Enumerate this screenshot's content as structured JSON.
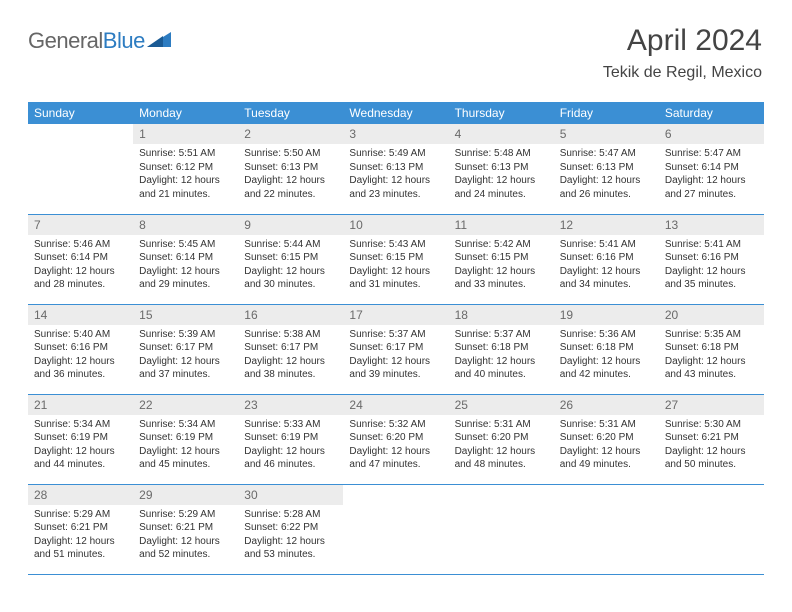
{
  "logo": {
    "part1": "General",
    "part2": "Blue"
  },
  "header": {
    "title": "April 2024",
    "location": "Tekik de Regil, Mexico"
  },
  "colors": {
    "header_bg": "#3b8fd4",
    "header_fg": "#ffffff",
    "daynum_bg": "#ececec",
    "daynum_fg": "#6a6a6a",
    "border": "#3b8fd4",
    "text": "#333333",
    "logo_gray": "#666666",
    "logo_blue": "#2d7cc1"
  },
  "weekdays": [
    "Sunday",
    "Monday",
    "Tuesday",
    "Wednesday",
    "Thursday",
    "Friday",
    "Saturday"
  ],
  "leading_blanks": 1,
  "days": [
    {
      "n": 1,
      "sr": "5:51 AM",
      "ss": "6:12 PM",
      "dl": "12 hours and 21 minutes."
    },
    {
      "n": 2,
      "sr": "5:50 AM",
      "ss": "6:13 PM",
      "dl": "12 hours and 22 minutes."
    },
    {
      "n": 3,
      "sr": "5:49 AM",
      "ss": "6:13 PM",
      "dl": "12 hours and 23 minutes."
    },
    {
      "n": 4,
      "sr": "5:48 AM",
      "ss": "6:13 PM",
      "dl": "12 hours and 24 minutes."
    },
    {
      "n": 5,
      "sr": "5:47 AM",
      "ss": "6:13 PM",
      "dl": "12 hours and 26 minutes."
    },
    {
      "n": 6,
      "sr": "5:47 AM",
      "ss": "6:14 PM",
      "dl": "12 hours and 27 minutes."
    },
    {
      "n": 7,
      "sr": "5:46 AM",
      "ss": "6:14 PM",
      "dl": "12 hours and 28 minutes."
    },
    {
      "n": 8,
      "sr": "5:45 AM",
      "ss": "6:14 PM",
      "dl": "12 hours and 29 minutes."
    },
    {
      "n": 9,
      "sr": "5:44 AM",
      "ss": "6:15 PM",
      "dl": "12 hours and 30 minutes."
    },
    {
      "n": 10,
      "sr": "5:43 AM",
      "ss": "6:15 PM",
      "dl": "12 hours and 31 minutes."
    },
    {
      "n": 11,
      "sr": "5:42 AM",
      "ss": "6:15 PM",
      "dl": "12 hours and 33 minutes."
    },
    {
      "n": 12,
      "sr": "5:41 AM",
      "ss": "6:16 PM",
      "dl": "12 hours and 34 minutes."
    },
    {
      "n": 13,
      "sr": "5:41 AM",
      "ss": "6:16 PM",
      "dl": "12 hours and 35 minutes."
    },
    {
      "n": 14,
      "sr": "5:40 AM",
      "ss": "6:16 PM",
      "dl": "12 hours and 36 minutes."
    },
    {
      "n": 15,
      "sr": "5:39 AM",
      "ss": "6:17 PM",
      "dl": "12 hours and 37 minutes."
    },
    {
      "n": 16,
      "sr": "5:38 AM",
      "ss": "6:17 PM",
      "dl": "12 hours and 38 minutes."
    },
    {
      "n": 17,
      "sr": "5:37 AM",
      "ss": "6:17 PM",
      "dl": "12 hours and 39 minutes."
    },
    {
      "n": 18,
      "sr": "5:37 AM",
      "ss": "6:18 PM",
      "dl": "12 hours and 40 minutes."
    },
    {
      "n": 19,
      "sr": "5:36 AM",
      "ss": "6:18 PM",
      "dl": "12 hours and 42 minutes."
    },
    {
      "n": 20,
      "sr": "5:35 AM",
      "ss": "6:18 PM",
      "dl": "12 hours and 43 minutes."
    },
    {
      "n": 21,
      "sr": "5:34 AM",
      "ss": "6:19 PM",
      "dl": "12 hours and 44 minutes."
    },
    {
      "n": 22,
      "sr": "5:34 AM",
      "ss": "6:19 PM",
      "dl": "12 hours and 45 minutes."
    },
    {
      "n": 23,
      "sr": "5:33 AM",
      "ss": "6:19 PM",
      "dl": "12 hours and 46 minutes."
    },
    {
      "n": 24,
      "sr": "5:32 AM",
      "ss": "6:20 PM",
      "dl": "12 hours and 47 minutes."
    },
    {
      "n": 25,
      "sr": "5:31 AM",
      "ss": "6:20 PM",
      "dl": "12 hours and 48 minutes."
    },
    {
      "n": 26,
      "sr": "5:31 AM",
      "ss": "6:20 PM",
      "dl": "12 hours and 49 minutes."
    },
    {
      "n": 27,
      "sr": "5:30 AM",
      "ss": "6:21 PM",
      "dl": "12 hours and 50 minutes."
    },
    {
      "n": 28,
      "sr": "5:29 AM",
      "ss": "6:21 PM",
      "dl": "12 hours and 51 minutes."
    },
    {
      "n": 29,
      "sr": "5:29 AM",
      "ss": "6:21 PM",
      "dl": "12 hours and 52 minutes."
    },
    {
      "n": 30,
      "sr": "5:28 AM",
      "ss": "6:22 PM",
      "dl": "12 hours and 53 minutes."
    }
  ],
  "labels": {
    "sunrise": "Sunrise:",
    "sunset": "Sunset:",
    "daylight": "Daylight:"
  }
}
